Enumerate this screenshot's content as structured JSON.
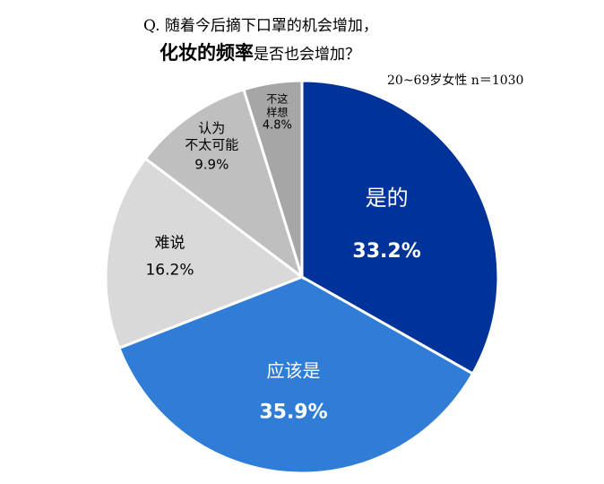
{
  "chart_data": {
    "type": "pie",
    "title_line1": "Q. 随着今后摘下口罩的机会增加，",
    "title_line2_bold": "化妆的频率",
    "title_line2_rest": "是否也会增加？",
    "note": "20~69岁女性  n＝1030",
    "slices": [
      {
        "label_lines": [
          "是的"
        ],
        "value": 33.2,
        "value_text": "33.2%",
        "color": "#003399",
        "text_color": "#ffffff"
      },
      {
        "label_lines": [
          "应该是"
        ],
        "value": 35.9,
        "value_text": "35.9%",
        "color": "#2f7dd6",
        "text_color": "#ffffff"
      },
      {
        "label_lines": [
          "难说"
        ],
        "value": 16.2,
        "value_text": "16.2%",
        "color": "#d9d9d9",
        "text_color": "#000000"
      },
      {
        "label_lines": [
          "认为",
          "不太可能"
        ],
        "value": 9.9,
        "value_text": "9.9%",
        "color": "#bfbfbf",
        "text_color": "#000000"
      },
      {
        "label_lines": [
          "不这",
          "样想"
        ],
        "value": 4.8,
        "value_text": "4.8%",
        "color": "#a6a6a6",
        "text_color": "#000000"
      }
    ]
  }
}
